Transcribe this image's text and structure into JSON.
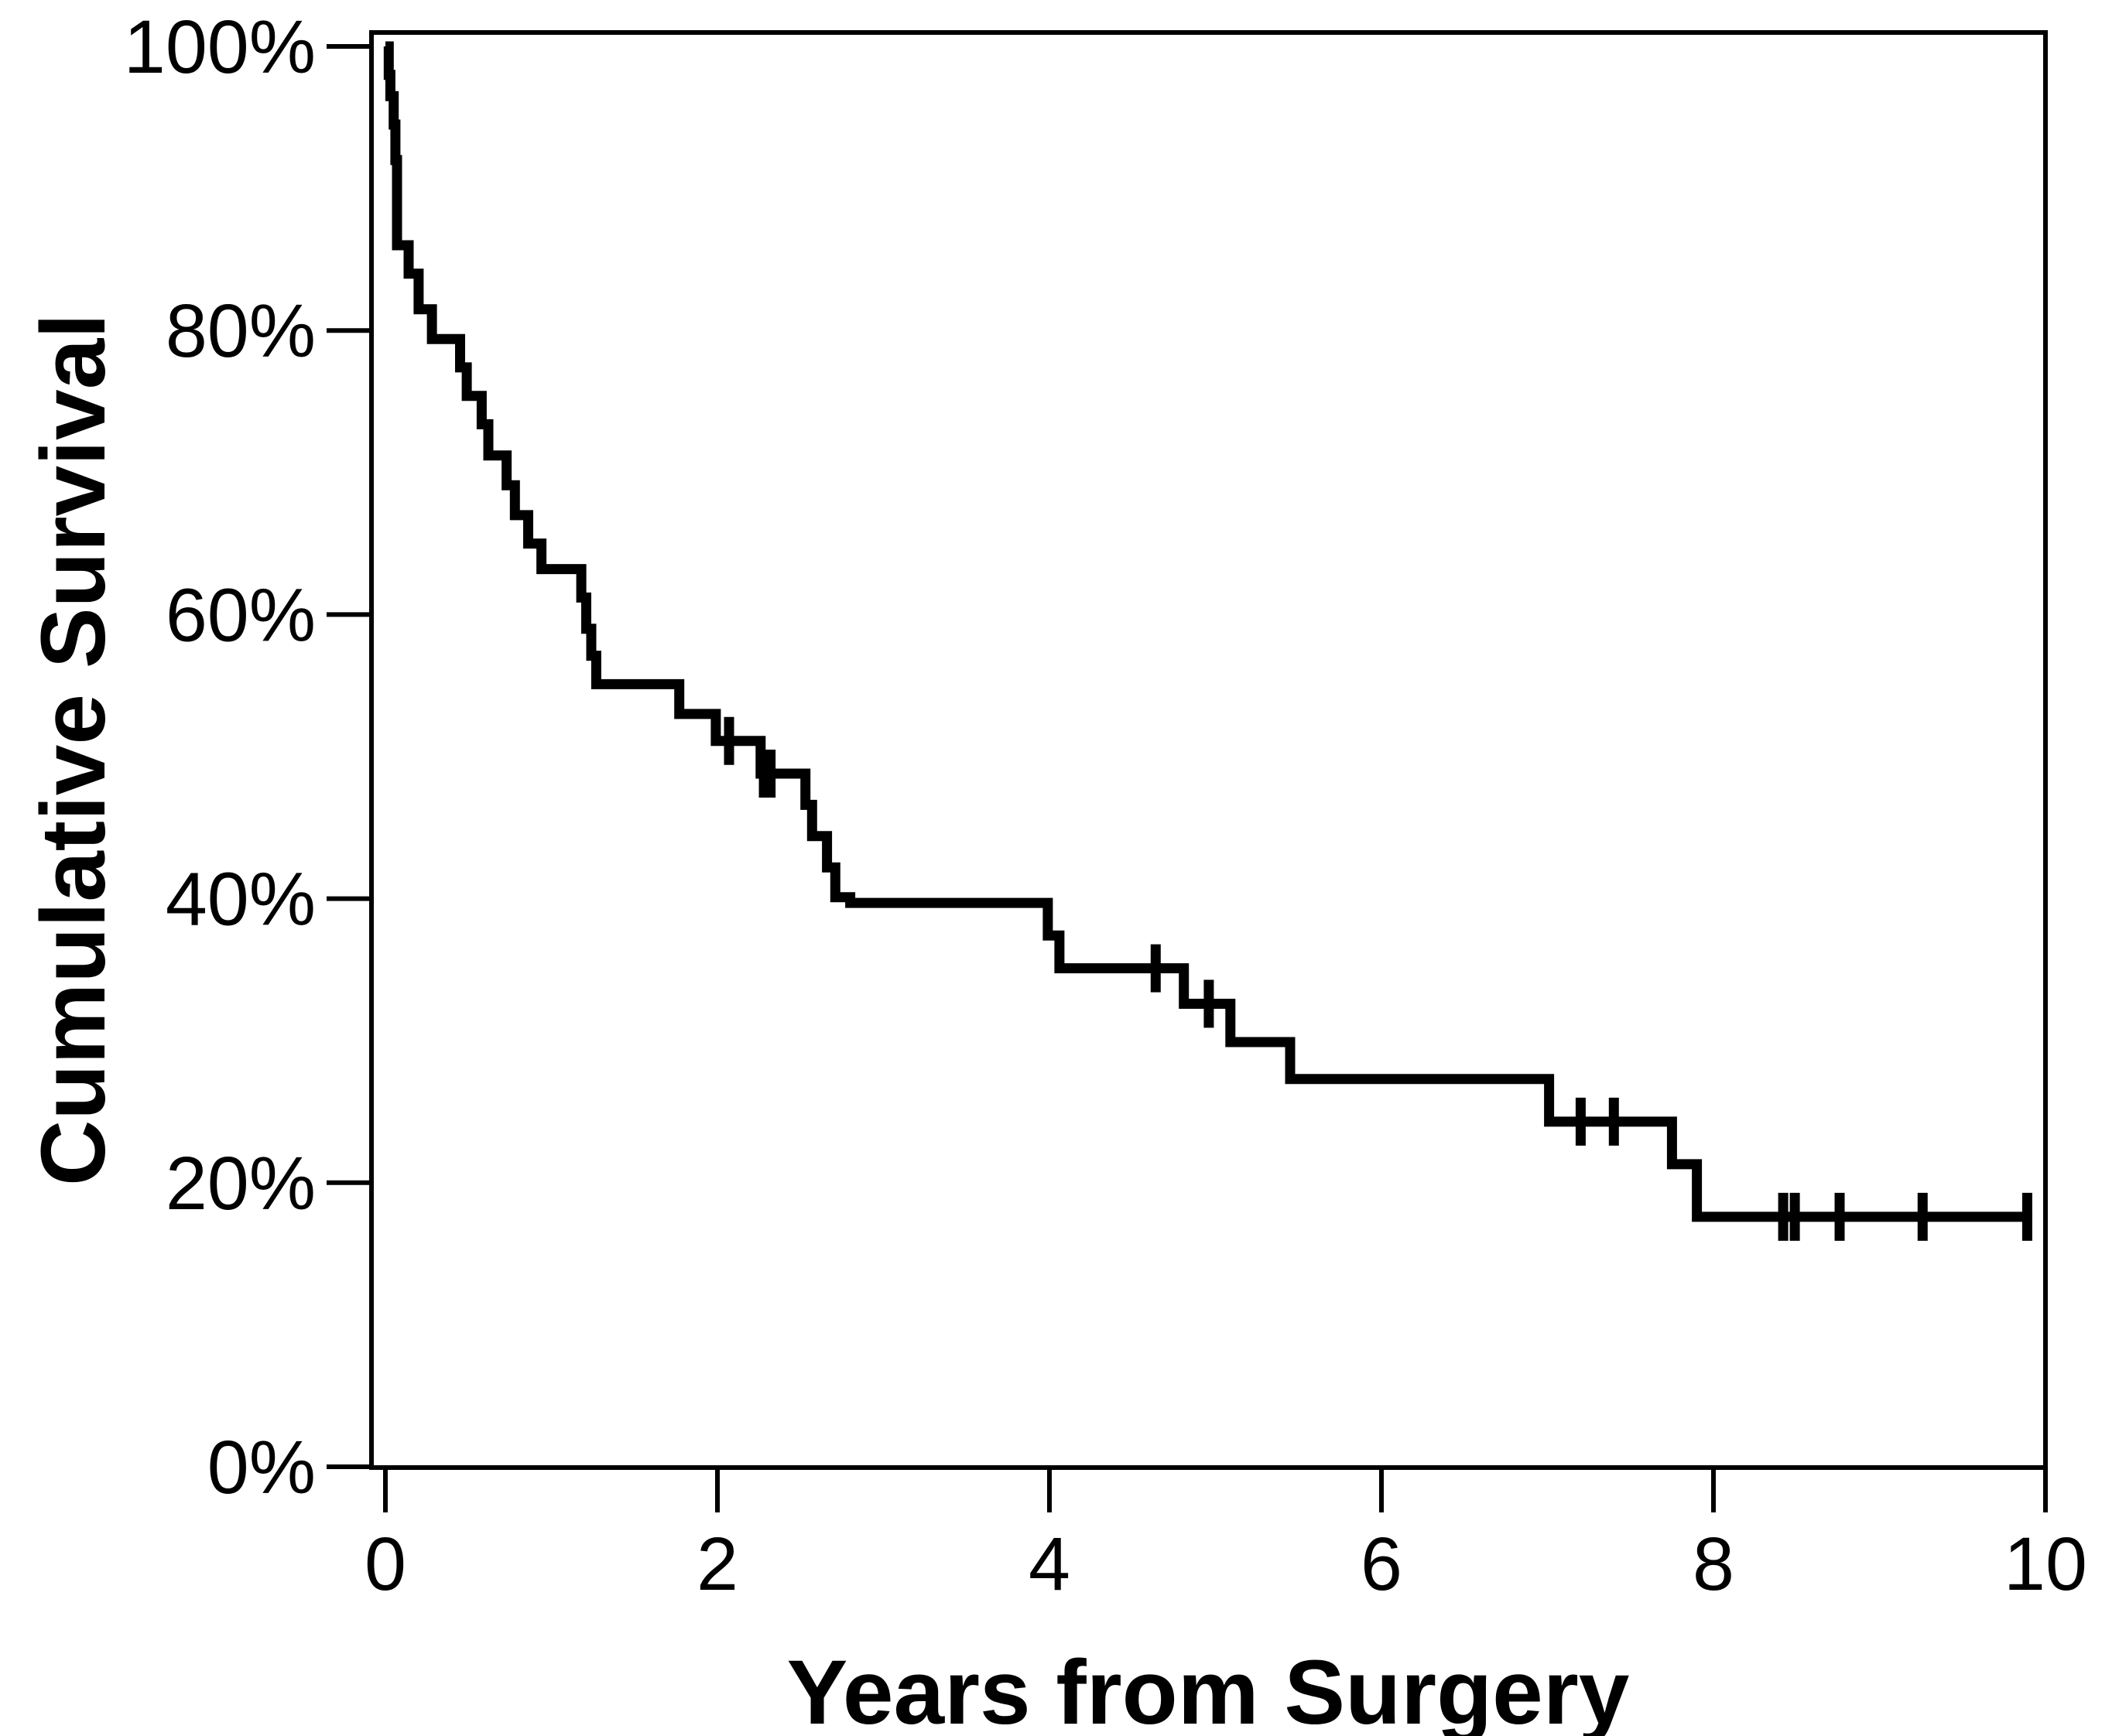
{
  "figure": {
    "background_color": "#ffffff",
    "line_color": "#000000",
    "text_color": "#000000"
  },
  "chart_data": {
    "type": "line",
    "subtype": "kaplan-meier-step-function",
    "title": "",
    "xlabel": "Years from Surgery",
    "ylabel": "Cumulative Survival",
    "xlim": [
      0,
      10
    ],
    "ylim": [
      0,
      100
    ],
    "grid": false,
    "legend_position": "none",
    "x_ticks": [
      0,
      2,
      4,
      6,
      8,
      10
    ],
    "x_tick_labels": [
      "0",
      "2",
      "4",
      "6",
      "8",
      "10"
    ],
    "y_ticks": [
      0,
      20,
      40,
      60,
      80,
      100
    ],
    "y_tick_labels": [
      "0%",
      "20%",
      "40%",
      "60%",
      "80%",
      "100%"
    ],
    "series": [
      {
        "name": "Cumulative Survival",
        "color": "#000000",
        "steps_t_percent": [
          [
            0.0,
            100.0
          ],
          [
            0.02,
            98.0
          ],
          [
            0.03,
            96.5
          ],
          [
            0.05,
            94.5
          ],
          [
            0.06,
            92.0
          ],
          [
            0.07,
            86.0
          ],
          [
            0.14,
            84.0
          ],
          [
            0.2,
            81.5
          ],
          [
            0.28,
            79.4
          ],
          [
            0.45,
            77.4
          ],
          [
            0.49,
            75.4
          ],
          [
            0.58,
            73.4
          ],
          [
            0.62,
            71.2
          ],
          [
            0.73,
            69.1
          ],
          [
            0.78,
            67.0
          ],
          [
            0.86,
            65.0
          ],
          [
            0.94,
            63.2
          ],
          [
            1.18,
            61.2
          ],
          [
            1.21,
            59.0
          ],
          [
            1.24,
            57.1
          ],
          [
            1.27,
            55.1
          ],
          [
            1.77,
            53.0
          ],
          [
            1.99,
            51.1
          ],
          [
            2.26,
            48.8
          ],
          [
            2.53,
            46.6
          ],
          [
            2.57,
            44.4
          ],
          [
            2.66,
            42.2
          ],
          [
            2.71,
            40.1
          ],
          [
            2.8,
            39.7
          ],
          [
            3.99,
            37.4
          ],
          [
            4.06,
            35.1
          ],
          [
            4.81,
            32.6
          ],
          [
            5.09,
            29.9
          ],
          [
            5.45,
            27.3
          ],
          [
            7.01,
            24.3
          ],
          [
            7.75,
            21.3
          ],
          [
            7.9,
            17.6
          ]
        ],
        "end_time": 9.92,
        "censor_marks_t_percent": [
          [
            2.07,
            51.1
          ],
          [
            2.28,
            48.8
          ],
          [
            2.32,
            48.8
          ],
          [
            4.64,
            35.1
          ],
          [
            4.96,
            32.6
          ],
          [
            7.2,
            24.3
          ],
          [
            7.4,
            24.3
          ],
          [
            8.42,
            17.6
          ],
          [
            8.49,
            17.6
          ],
          [
            8.76,
            17.6
          ],
          [
            9.26,
            17.6
          ],
          [
            9.89,
            17.6
          ]
        ]
      }
    ]
  }
}
